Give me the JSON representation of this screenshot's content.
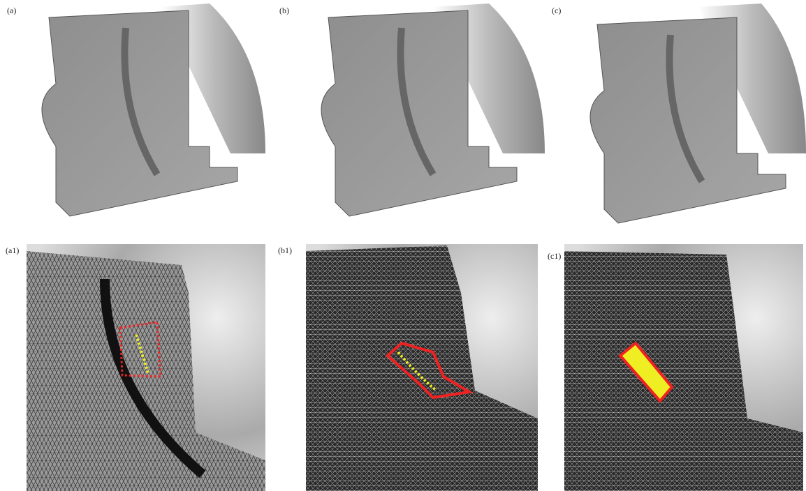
{
  "panels": [
    {
      "label": "(a)"
    },
    {
      "label": "(b)"
    },
    {
      "label": "(c)"
    },
    {
      "label": "(a1)"
    },
    {
      "label": "(b1)"
    },
    {
      "label": "(c1)"
    }
  ]
}
